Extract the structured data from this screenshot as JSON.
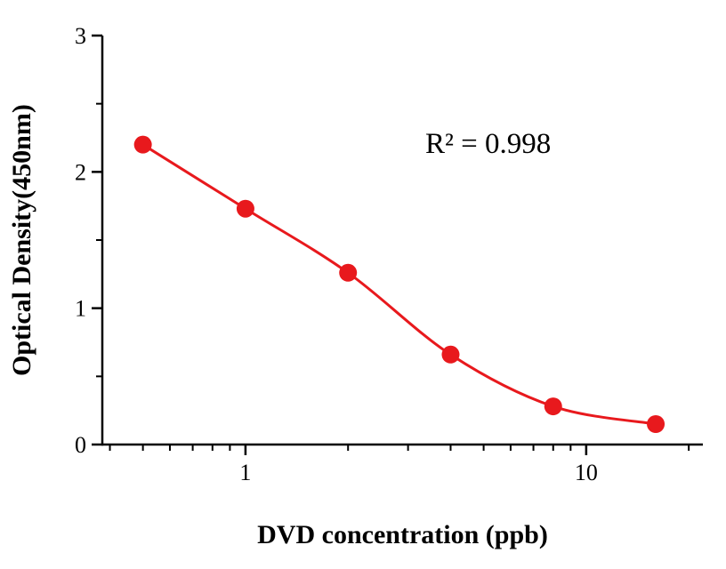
{
  "chart_data": {
    "type": "scatter",
    "x": [
      0.5,
      1,
      2,
      4,
      8,
      16
    ],
    "y": [
      2.2,
      1.73,
      1.26,
      0.66,
      0.28,
      0.15
    ],
    "curve": "smooth-sigmoid-fit-through-points",
    "title": "",
    "xlabel": "DVD concentration (ppb)",
    "ylabel": "Optical Density(450nm)",
    "annotation": "R² = 0.998",
    "x_scale": "log",
    "xlim": [
      0.38,
      22
    ],
    "ylim": [
      0,
      3
    ],
    "x_ticks": [
      1,
      10
    ],
    "x_tick_labels": [
      "1",
      "10"
    ],
    "y_ticks": [
      0,
      1,
      2,
      3
    ],
    "y_tick_labels": [
      "0",
      "1",
      "2",
      "3"
    ],
    "y_minor_ticks": [
      0.5,
      1.5,
      2.5
    ],
    "grid": false,
    "legend": "none",
    "colors": {
      "series": "#e8191d",
      "axis": "#000000",
      "background": "#ffffff"
    }
  }
}
